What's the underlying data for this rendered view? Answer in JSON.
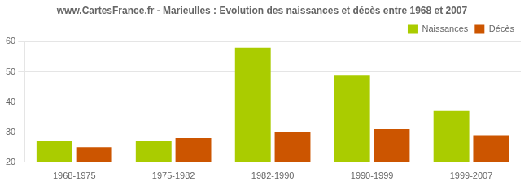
{
  "chart_data": {
    "type": "bar",
    "title": "www.CartesFrance.fr - Marieulles : Evolution des naissances et décès entre 1968 et 2007",
    "categories": [
      "1968-1975",
      "1975-1982",
      "1982-1990",
      "1990-1999",
      "1999-2007"
    ],
    "series": [
      {
        "name": "Naissances",
        "color": "#aacc00",
        "values": [
          27,
          27,
          58,
          49,
          37
        ]
      },
      {
        "name": "Décès",
        "color": "#cc5500",
        "values": [
          25,
          28,
          30,
          31,
          29
        ]
      }
    ],
    "ylim": [
      20,
      60
    ],
    "yticks": [
      20,
      30,
      40,
      50,
      60
    ],
    "grid": true,
    "legend": "upper right"
  }
}
